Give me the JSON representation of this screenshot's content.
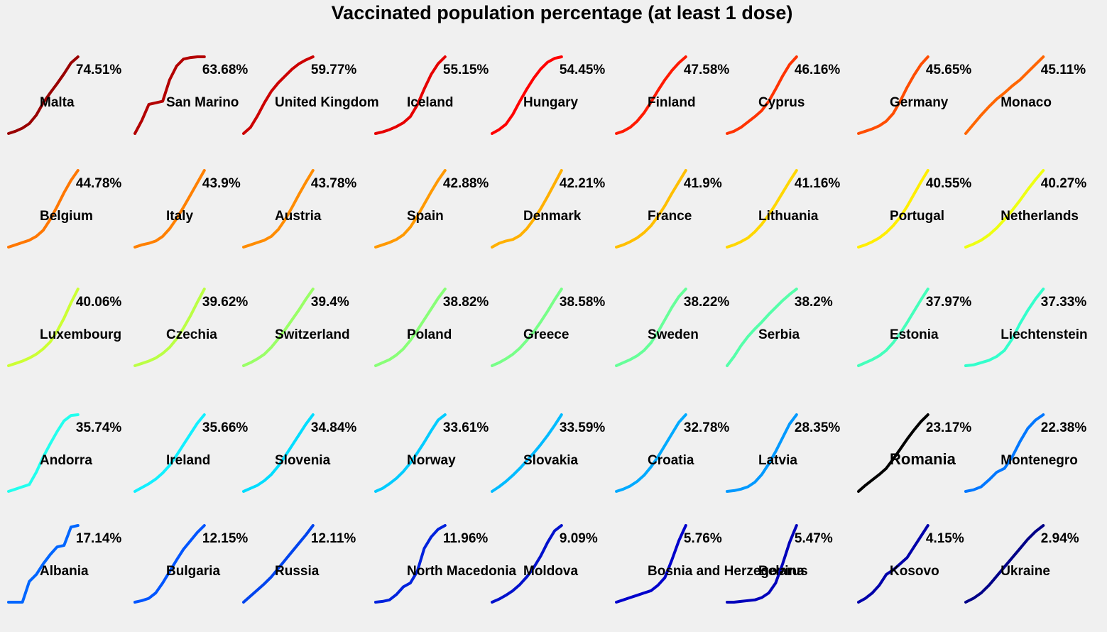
{
  "chart_data": {
    "type": "line",
    "title": "Vaccinated population percentage (at least 1 dose)",
    "xlabel": "",
    "ylabel": "",
    "grid": false,
    "legend": "none",
    "colormap": "jet (dark red = highest, dark blue = lowest)",
    "series": [
      {
        "name": "Malta",
        "value_label": "74.51%",
        "final_value": 74.51,
        "color": "#990000",
        "profile": [
          0.0,
          0.03,
          0.07,
          0.13,
          0.24,
          0.4,
          0.53,
          0.65,
          0.78,
          0.92,
          1.0
        ]
      },
      {
        "name": "San Marino",
        "value_label": "63.68%",
        "final_value": 63.68,
        "color": "#b30000",
        "profile": [
          0.0,
          0.17,
          0.38,
          0.4,
          0.42,
          0.7,
          0.88,
          0.97,
          0.99,
          1.0,
          1.0
        ]
      },
      {
        "name": "United Kingdom",
        "value_label": "59.77%",
        "final_value": 59.77,
        "color": "#cc0000",
        "profile": [
          0.0,
          0.08,
          0.23,
          0.4,
          0.55,
          0.66,
          0.75,
          0.84,
          0.91,
          0.96,
          1.0
        ]
      },
      {
        "name": "Iceland",
        "value_label": "55.15%",
        "final_value": 55.15,
        "color": "#e60000",
        "profile": [
          0.0,
          0.02,
          0.05,
          0.09,
          0.14,
          0.22,
          0.37,
          0.58,
          0.77,
          0.91,
          1.0
        ]
      },
      {
        "name": "Hungary",
        "value_label": "54.45%",
        "final_value": 54.45,
        "color": "#ff0000",
        "profile": [
          0.0,
          0.05,
          0.12,
          0.25,
          0.42,
          0.58,
          0.72,
          0.84,
          0.93,
          0.98,
          1.0
        ]
      },
      {
        "name": "Finland",
        "value_label": "47.58%",
        "final_value": 47.58,
        "color": "#ff1a00",
        "profile": [
          0.0,
          0.03,
          0.08,
          0.16,
          0.27,
          0.41,
          0.56,
          0.7,
          0.82,
          0.92,
          1.0
        ]
      },
      {
        "name": "Cyprus",
        "value_label": "46.16%",
        "final_value": 46.16,
        "color": "#ff3300",
        "profile": [
          0.0,
          0.03,
          0.08,
          0.15,
          0.22,
          0.3,
          0.42,
          0.58,
          0.75,
          0.9,
          1.0
        ]
      },
      {
        "name": "Germany",
        "value_label": "45.65%",
        "final_value": 45.65,
        "color": "#ff4d00",
        "profile": [
          0.0,
          0.03,
          0.06,
          0.1,
          0.16,
          0.26,
          0.42,
          0.6,
          0.76,
          0.9,
          1.0
        ]
      },
      {
        "name": "Monaco",
        "value_label": "45.11%",
        "final_value": 45.11,
        "color": "#ff6600",
        "profile": [
          0.0,
          0.12,
          0.24,
          0.35,
          0.45,
          0.53,
          0.62,
          0.7,
          0.8,
          0.9,
          1.0
        ]
      },
      {
        "name": "Belgium",
        "value_label": "44.78%",
        "final_value": 44.78,
        "color": "#ff7700",
        "profile": [
          0.0,
          0.03,
          0.06,
          0.09,
          0.14,
          0.22,
          0.36,
          0.53,
          0.71,
          0.87,
          1.0
        ]
      },
      {
        "name": "Italy",
        "value_label": "43.9%",
        "final_value": 43.9,
        "color": "#ff8000",
        "profile": [
          0.0,
          0.03,
          0.05,
          0.08,
          0.14,
          0.24,
          0.37,
          0.52,
          0.68,
          0.84,
          1.0
        ]
      },
      {
        "name": "Austria",
        "value_label": "43.78%",
        "final_value": 43.78,
        "color": "#ff8c00",
        "profile": [
          0.0,
          0.03,
          0.06,
          0.09,
          0.14,
          0.23,
          0.36,
          0.52,
          0.69,
          0.85,
          1.0
        ]
      },
      {
        "name": "Spain",
        "value_label": "42.88%",
        "final_value": 42.88,
        "color": "#ff9900",
        "profile": [
          0.0,
          0.03,
          0.06,
          0.1,
          0.16,
          0.26,
          0.4,
          0.56,
          0.72,
          0.87,
          1.0
        ]
      },
      {
        "name": "Denmark",
        "value_label": "42.21%",
        "final_value": 42.21,
        "color": "#ffb000",
        "profile": [
          0.0,
          0.05,
          0.08,
          0.1,
          0.15,
          0.24,
          0.36,
          0.5,
          0.66,
          0.83,
          1.0
        ]
      },
      {
        "name": "France",
        "value_label": "41.9%",
        "final_value": 41.9,
        "color": "#ffbf00",
        "profile": [
          0.0,
          0.03,
          0.07,
          0.12,
          0.19,
          0.28,
          0.4,
          0.54,
          0.7,
          0.85,
          1.0
        ]
      },
      {
        "name": "Lithuania",
        "value_label": "41.16%",
        "final_value": 41.16,
        "color": "#ffd700",
        "profile": [
          0.0,
          0.03,
          0.07,
          0.12,
          0.2,
          0.3,
          0.42,
          0.56,
          0.71,
          0.86,
          1.0
        ]
      },
      {
        "name": "Portugal",
        "value_label": "40.55%",
        "final_value": 40.55,
        "color": "#ffee00",
        "profile": [
          0.0,
          0.03,
          0.07,
          0.12,
          0.19,
          0.28,
          0.39,
          0.53,
          0.69,
          0.85,
          1.0
        ]
      },
      {
        "name": "Netherlands",
        "value_label": "40.27%",
        "final_value": 40.27,
        "color": "#eeff11",
        "profile": [
          0.0,
          0.04,
          0.09,
          0.16,
          0.25,
          0.36,
          0.48,
          0.61,
          0.75,
          0.88,
          1.0
        ]
      },
      {
        "name": "Luxembourg",
        "value_label": "40.06%",
        "final_value": 40.06,
        "color": "#ccff33",
        "profile": [
          0.0,
          0.03,
          0.06,
          0.1,
          0.15,
          0.22,
          0.31,
          0.45,
          0.62,
          0.82,
          1.0
        ]
      },
      {
        "name": "Czechia",
        "value_label": "39.62%",
        "final_value": 39.62,
        "color": "#bbff44",
        "profile": [
          0.0,
          0.03,
          0.06,
          0.1,
          0.16,
          0.24,
          0.35,
          0.49,
          0.65,
          0.83,
          1.0
        ]
      },
      {
        "name": "Switzerland",
        "value_label": "39.4%",
        "final_value": 39.4,
        "color": "#99ff66",
        "profile": [
          0.0,
          0.04,
          0.09,
          0.15,
          0.24,
          0.35,
          0.47,
          0.6,
          0.73,
          0.87,
          1.0
        ]
      },
      {
        "name": "Poland",
        "value_label": "38.82%",
        "final_value": 38.82,
        "color": "#88ff77",
        "profile": [
          0.0,
          0.04,
          0.08,
          0.14,
          0.22,
          0.33,
          0.46,
          0.6,
          0.74,
          0.88,
          1.0
        ]
      },
      {
        "name": "Greece",
        "value_label": "38.58%",
        "final_value": 38.58,
        "color": "#77ff88",
        "profile": [
          0.0,
          0.04,
          0.09,
          0.15,
          0.23,
          0.33,
          0.44,
          0.57,
          0.71,
          0.86,
          1.0
        ]
      },
      {
        "name": "Sweden",
        "value_label": "38.22%",
        "final_value": 38.22,
        "color": "#66ff99",
        "profile": [
          0.0,
          0.04,
          0.08,
          0.13,
          0.2,
          0.3,
          0.44,
          0.6,
          0.76,
          0.9,
          1.0
        ]
      },
      {
        "name": "Serbia",
        "value_label": "38.2%",
        "final_value": 38.2,
        "color": "#55ffaa",
        "profile": [
          0.0,
          0.12,
          0.26,
          0.38,
          0.48,
          0.57,
          0.67,
          0.76,
          0.85,
          0.93,
          1.0
        ]
      },
      {
        "name": "Estonia",
        "value_label": "37.97%",
        "final_value": 37.97,
        "color": "#44ffbb",
        "profile": [
          0.0,
          0.04,
          0.08,
          0.13,
          0.2,
          0.3,
          0.42,
          0.56,
          0.71,
          0.86,
          1.0
        ]
      },
      {
        "name": "Liechtenstein",
        "value_label": "37.33%",
        "final_value": 37.33,
        "color": "#33ffcc",
        "profile": [
          0.0,
          0.01,
          0.04,
          0.07,
          0.12,
          0.2,
          0.35,
          0.55,
          0.72,
          0.87,
          1.0
        ]
      },
      {
        "name": "Andorra",
        "value_label": "35.74%",
        "final_value": 35.74,
        "color": "#22ffee",
        "profile": [
          0.0,
          0.03,
          0.06,
          0.09,
          0.25,
          0.45,
          0.62,
          0.78,
          0.92,
          0.99,
          1.0
        ]
      },
      {
        "name": "Ireland",
        "value_label": "35.66%",
        "final_value": 35.66,
        "color": "#11f0ff",
        "profile": [
          0.0,
          0.05,
          0.1,
          0.16,
          0.24,
          0.34,
          0.47,
          0.61,
          0.75,
          0.89,
          1.0
        ]
      },
      {
        "name": "Slovenia",
        "value_label": "34.84%",
        "final_value": 34.84,
        "color": "#00ddff",
        "profile": [
          0.0,
          0.04,
          0.08,
          0.14,
          0.22,
          0.33,
          0.46,
          0.6,
          0.74,
          0.88,
          1.0
        ]
      },
      {
        "name": "Norway",
        "value_label": "33.61%",
        "final_value": 33.61,
        "color": "#00ccff",
        "profile": [
          0.0,
          0.04,
          0.1,
          0.17,
          0.26,
          0.37,
          0.5,
          0.64,
          0.79,
          0.93,
          1.0
        ]
      },
      {
        "name": "Slovakia",
        "value_label": "33.59%",
        "final_value": 33.59,
        "color": "#00bbff",
        "profile": [
          0.0,
          0.06,
          0.13,
          0.21,
          0.3,
          0.4,
          0.5,
          0.61,
          0.73,
          0.86,
          1.0
        ]
      },
      {
        "name": "Croatia",
        "value_label": "32.78%",
        "final_value": 32.78,
        "color": "#00aaff",
        "profile": [
          0.0,
          0.03,
          0.07,
          0.13,
          0.21,
          0.32,
          0.45,
          0.6,
          0.75,
          0.9,
          1.0
        ]
      },
      {
        "name": "Latvia",
        "value_label": "28.35%",
        "final_value": 28.35,
        "color": "#0099ff",
        "profile": [
          0.0,
          0.01,
          0.03,
          0.06,
          0.12,
          0.22,
          0.36,
          0.52,
          0.7,
          0.88,
          1.0
        ]
      },
      {
        "name": "Romania",
        "value_label": "23.17%",
        "final_value": 23.17,
        "color": "#000000",
        "profile": [
          0.0,
          0.08,
          0.15,
          0.22,
          0.3,
          0.42,
          0.55,
          0.68,
          0.8,
          0.91,
          1.0
        ]
      },
      {
        "name": "Montenegro",
        "value_label": "22.38%",
        "final_value": 22.38,
        "color": "#0077ff",
        "profile": [
          0.0,
          0.02,
          0.06,
          0.15,
          0.25,
          0.3,
          0.45,
          0.65,
          0.82,
          0.93,
          1.0
        ]
      },
      {
        "name": "Albania",
        "value_label": "17.14%",
        "final_value": 17.14,
        "color": "#0066ff",
        "profile": [
          0.0,
          0.0,
          0.0,
          0.27,
          0.36,
          0.5,
          0.62,
          0.72,
          0.74,
          0.98,
          1.0
        ]
      },
      {
        "name": "Bulgaria",
        "value_label": "12.15%",
        "final_value": 12.15,
        "color": "#0055ff",
        "profile": [
          0.0,
          0.02,
          0.05,
          0.12,
          0.25,
          0.4,
          0.55,
          0.69,
          0.8,
          0.91,
          1.0
        ]
      },
      {
        "name": "Russia",
        "value_label": "12.11%",
        "final_value": 12.11,
        "color": "#0044ee",
        "profile": [
          0.0,
          0.08,
          0.16,
          0.24,
          0.33,
          0.44,
          0.55,
          0.66,
          0.77,
          0.88,
          1.0
        ]
      },
      {
        "name": "North Macedonia",
        "value_label": "11.96%",
        "final_value": 11.96,
        "color": "#0022dd",
        "profile": [
          0.0,
          0.01,
          0.03,
          0.1,
          0.2,
          0.25,
          0.4,
          0.7,
          0.85,
          0.95,
          1.0
        ]
      },
      {
        "name": "Moldova",
        "value_label": "9.09%",
        "final_value": 9.09,
        "color": "#0011cc",
        "profile": [
          0.0,
          0.04,
          0.09,
          0.15,
          0.23,
          0.33,
          0.45,
          0.6,
          0.78,
          0.93,
          1.0
        ]
      },
      {
        "name": "Bosnia and Herzegovina",
        "value_label": "5.76%",
        "final_value": 5.76,
        "color": "#0000cc",
        "profile": [
          0.0,
          0.03,
          0.06,
          0.09,
          0.12,
          0.15,
          0.22,
          0.32,
          0.55,
          0.8,
          1.0
        ]
      },
      {
        "name": "Belarus",
        "value_label": "5.47%",
        "final_value": 5.47,
        "color": "#0000bb",
        "profile": [
          0.0,
          0.0,
          0.01,
          0.02,
          0.03,
          0.06,
          0.12,
          0.25,
          0.5,
          0.78,
          1.0
        ]
      },
      {
        "name": "Kosovo",
        "value_label": "4.15%",
        "final_value": 4.15,
        "color": "#0000aa",
        "profile": [
          0.0,
          0.05,
          0.12,
          0.22,
          0.36,
          0.42,
          0.5,
          0.58,
          0.72,
          0.86,
          1.0
        ]
      },
      {
        "name": "Ukraine",
        "value_label": "2.94%",
        "final_value": 2.94,
        "color": "#000088",
        "profile": [
          0.0,
          0.05,
          0.12,
          0.22,
          0.34,
          0.46,
          0.58,
          0.7,
          0.82,
          0.92,
          1.0
        ]
      }
    ]
  }
}
